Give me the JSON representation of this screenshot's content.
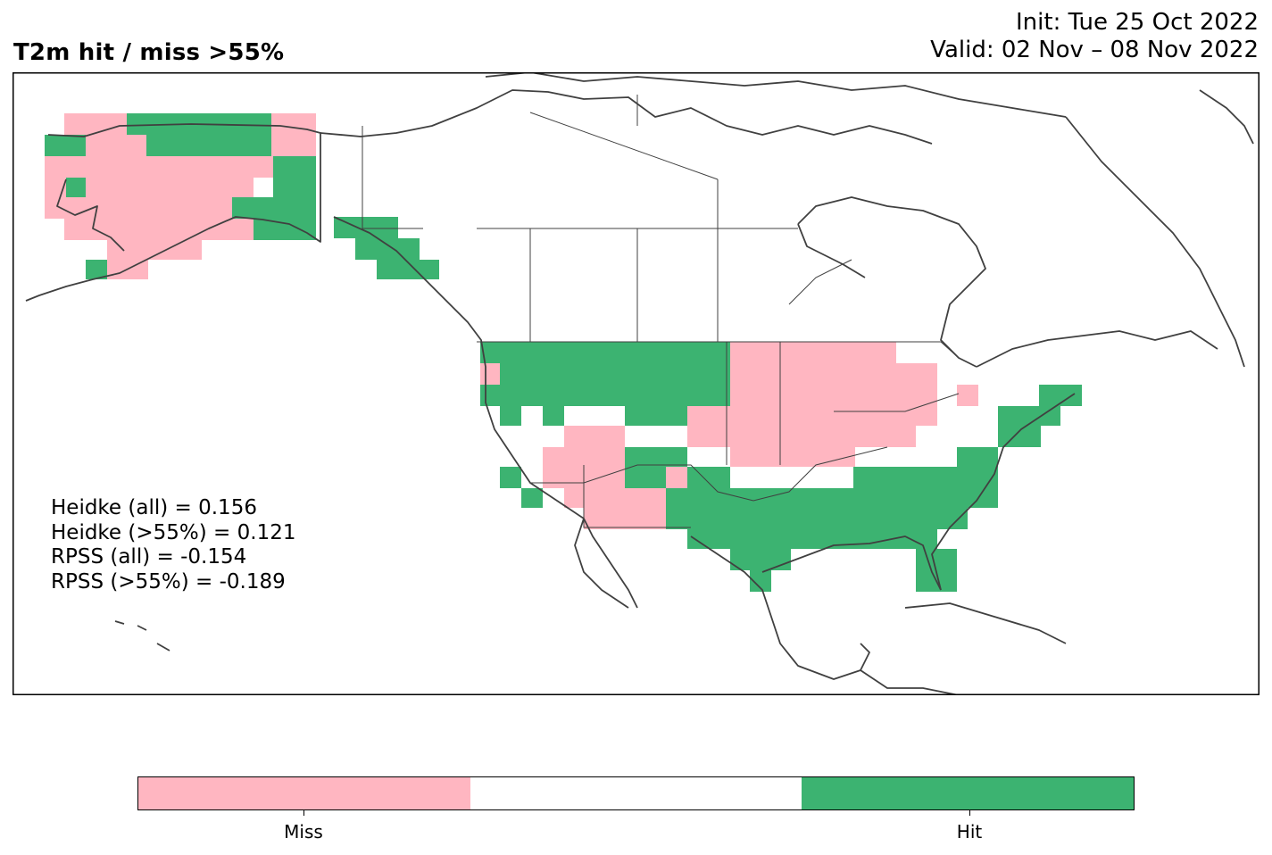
{
  "title": "T2m hit / miss  >55%",
  "init": "Init: Tue 25 Oct 2022",
  "valid": "Valid: 02 Nov – 08 Nov 2022",
  "stats": {
    "heidke_all": "Heidke (all) = 0.156",
    "heidke_55": "Heidke (>55%) = 0.121",
    "rpss_all": "RPSS (all) = -0.154",
    "rpss_55": "RPSS (>55%) = -0.189"
  },
  "colors": {
    "miss": "#FFB6C1",
    "neutral": "#FFFFFF",
    "hit": "#3CB371",
    "coast": "#404040"
  },
  "colorbar": {
    "miss_label": "Miss",
    "hit_label": "Hit"
  }
}
